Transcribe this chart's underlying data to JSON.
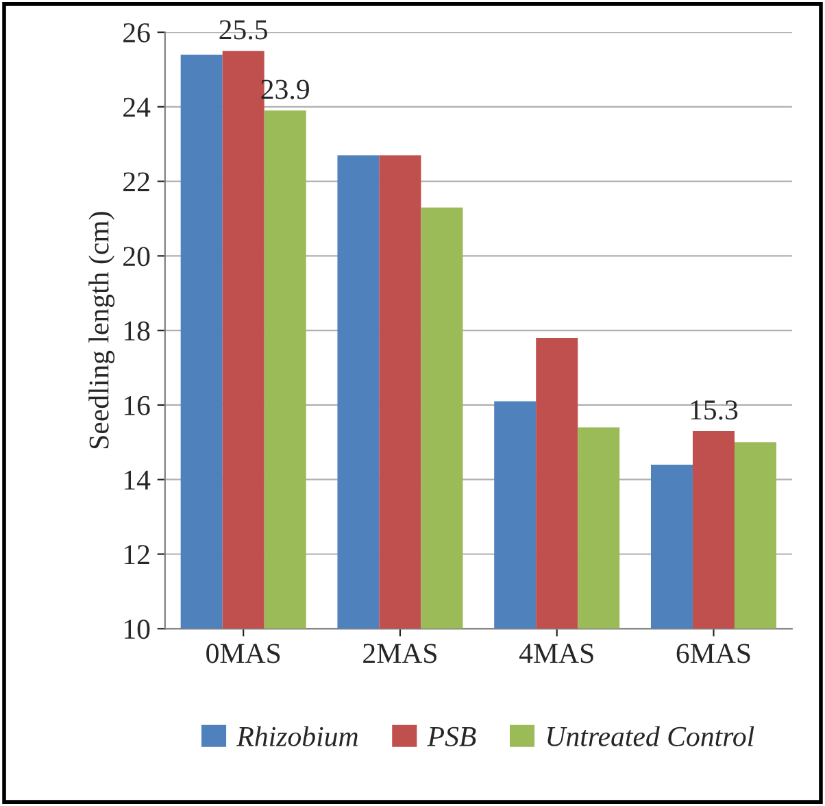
{
  "chart_data": {
    "type": "bar",
    "ylabel": "Seedling length (cm)",
    "categories": [
      "0MAS",
      "2MAS",
      "4MAS",
      "6MAS"
    ],
    "series": [
      {
        "name": "Rhizobium",
        "color": "#4f81bd",
        "values": [
          25.4,
          22.7,
          16.1,
          14.4
        ]
      },
      {
        "name": "PSB",
        "color": "#c0504d",
        "values": [
          25.5,
          22.7,
          17.8,
          15.3
        ],
        "value_labels": [
          "25.5",
          null,
          null,
          "15.3"
        ]
      },
      {
        "name": "Untreated Control",
        "color": "#9bbb59",
        "values": [
          23.9,
          21.3,
          15.4,
          15.0
        ],
        "value_labels": [
          "23.9",
          null,
          null,
          null
        ]
      }
    ],
    "ylim": [
      10,
      26
    ],
    "yticks": [
      10,
      12,
      14,
      16,
      18,
      20,
      22,
      24,
      26
    ],
    "grid": "y",
    "legend": "bottom"
  }
}
